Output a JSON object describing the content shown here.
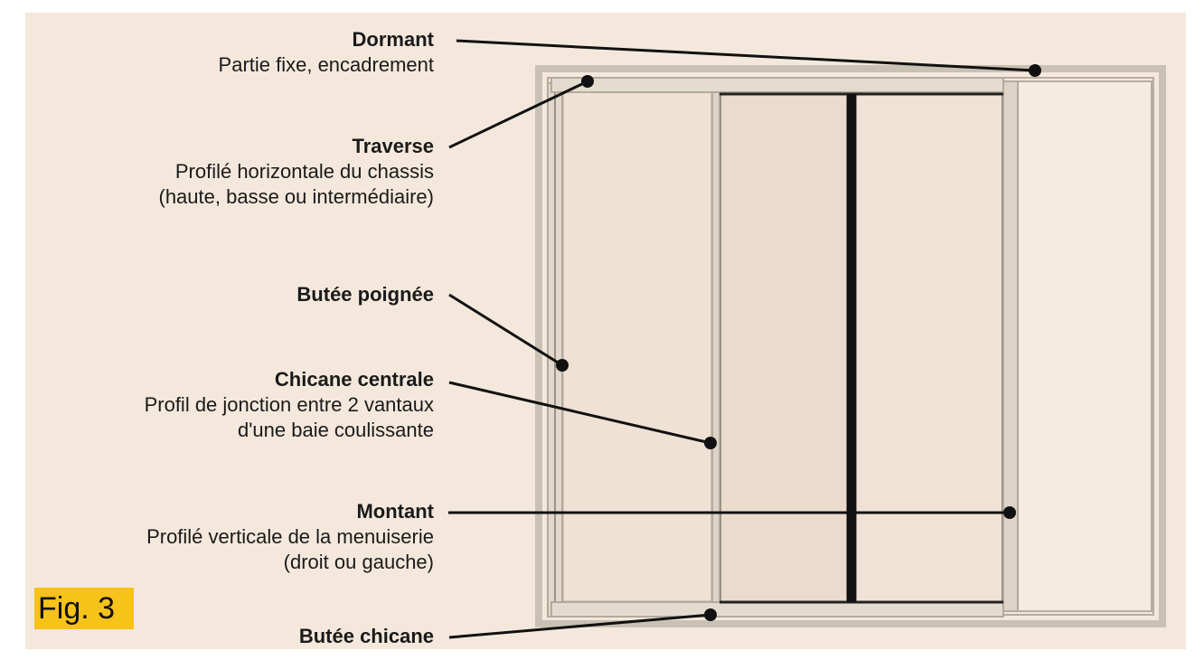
{
  "labels": {
    "dormant": {
      "title": "Dormant",
      "desc": [
        "Partie fixe, encadrement"
      ]
    },
    "traverse": {
      "title": "Traverse",
      "desc": [
        "Profilé horizontale du chassis",
        "(haute, basse ou intermédiaire)"
      ]
    },
    "butee_poignee": {
      "title": "Butée poignée",
      "desc": []
    },
    "chicane_centrale": {
      "title": "Chicane centrale",
      "desc": [
        "Profil de jonction entre 2 vantaux",
        "d'une baie coulissante"
      ]
    },
    "montant": {
      "title": "Montant",
      "desc": [
        "Profilé verticale de la menuiserie",
        "(droit ou gauche)"
      ]
    },
    "butee_chicane": {
      "title": "Butée chicane",
      "desc": []
    }
  },
  "figure_tag": "Fig. 3",
  "colors": {
    "background": "#f4e8dc",
    "frame": "#c9c1b4",
    "glass": "#efe1d3",
    "line": "#111111",
    "tag": "#f7c21a"
  }
}
